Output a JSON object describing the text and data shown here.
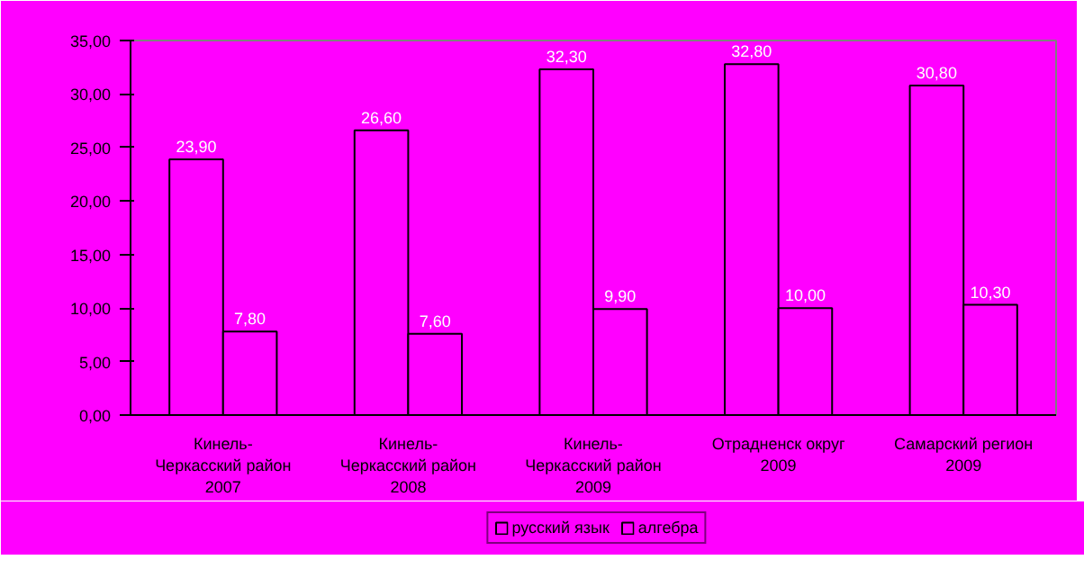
{
  "chart_data": {
    "type": "bar",
    "categories": [
      "Кинель-\nЧеркасский район\n2007",
      "Кинель-\nЧеркасский район\n2008",
      "Кинель-\nЧеркасский район\n2009",
      "Отрадненск округ\n2009",
      "Самарский регион\n2009"
    ],
    "series": [
      {
        "name": "русский язык",
        "color": "#ff00ff",
        "values": [
          23.9,
          26.6,
          32.3,
          32.8,
          30.8
        ],
        "value_labels": [
          "23,90",
          "26,60",
          "32,30",
          "32,80",
          "30,80"
        ]
      },
      {
        "name": "алгебра",
        "color": "#ff00ff",
        "values": [
          7.8,
          7.6,
          9.9,
          10.0,
          10.3
        ],
        "value_labels": [
          "7,80",
          "7,60",
          "9,90",
          "10,00",
          "10,30"
        ]
      }
    ],
    "ylim": [
      0,
      35
    ],
    "yticks": [
      {
        "value": 0,
        "label": "0,00"
      },
      {
        "value": 5,
        "label": "5,00"
      },
      {
        "value": 10,
        "label": "10,00"
      },
      {
        "value": 15,
        "label": "15,00"
      },
      {
        "value": 20,
        "label": "20,00"
      },
      {
        "value": 25,
        "label": "25,00"
      },
      {
        "value": 30,
        "label": "30,00"
      },
      {
        "value": 35,
        "label": "35,00"
      }
    ],
    "legend": "bottom"
  }
}
